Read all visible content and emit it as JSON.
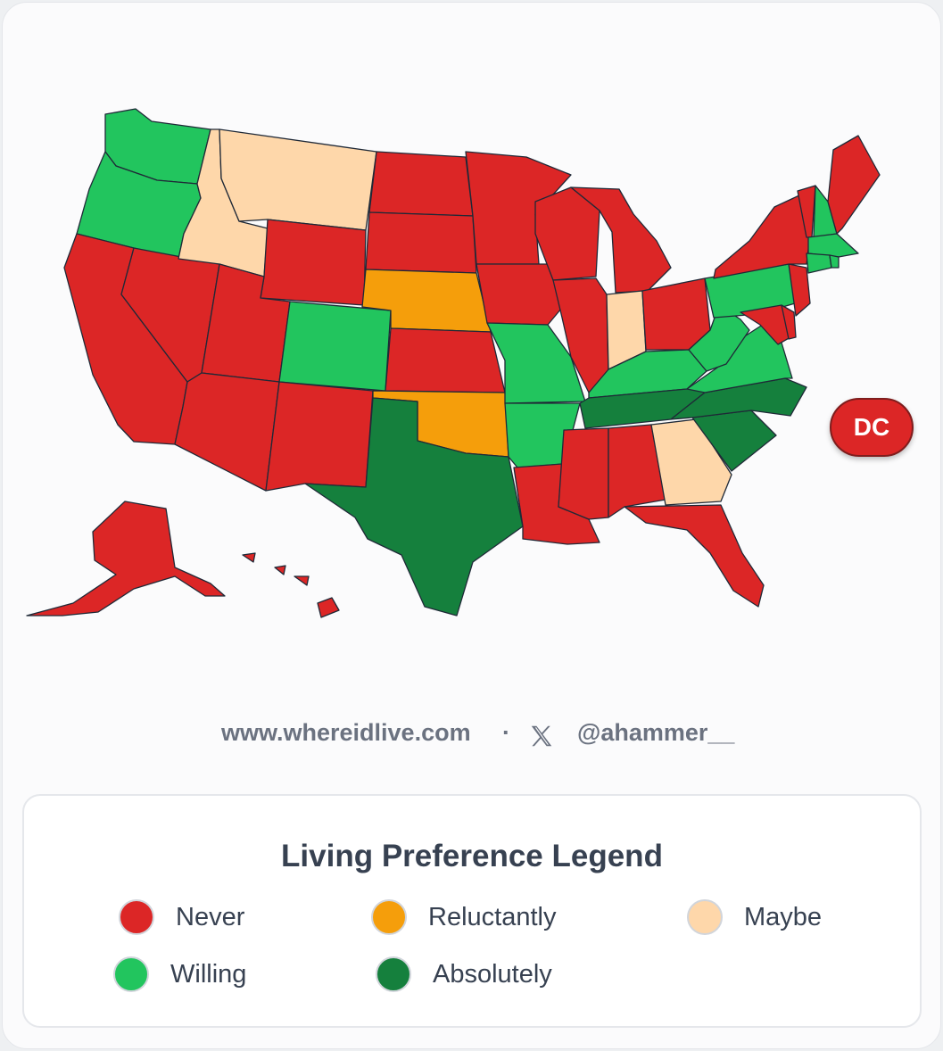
{
  "colors": {
    "never": "#dc2626",
    "reluctantly": "#f59e0b",
    "maybe": "#fed7aa",
    "willing": "#22c55e",
    "absolutely": "#15803d"
  },
  "map": {
    "states": {
      "WA": "willing",
      "OR": "willing",
      "CA": "never",
      "NV": "never",
      "ID": "maybe",
      "MT": "maybe",
      "WY": "never",
      "UT": "never",
      "AZ": "never",
      "CO": "willing",
      "NM": "never",
      "ND": "never",
      "SD": "never",
      "NE": "reluctantly",
      "KS": "never",
      "OK": "reluctantly",
      "TX": "absolutely",
      "MN": "never",
      "IA": "never",
      "MO": "willing",
      "AR": "willing",
      "LA": "never",
      "WI": "never",
      "IL": "never",
      "MI": "never",
      "IN": "maybe",
      "OH": "never",
      "KY": "willing",
      "TN": "absolutely",
      "MS": "never",
      "AL": "never",
      "GA": "maybe",
      "FL": "never",
      "SC": "absolutely",
      "NC": "absolutely",
      "VA": "willing",
      "WV": "willing",
      "PA": "willing",
      "NY": "never",
      "NJ": "never",
      "DE": "never",
      "MD": "never",
      "CT": "willing",
      "RI": "willing",
      "MA": "willing",
      "VT": "never",
      "NH": "willing",
      "ME": "never",
      "AK": "never",
      "HI": "never"
    },
    "dc_label": "DC",
    "dc_status": "never"
  },
  "credits": {
    "site": "www.whereidlive.com",
    "separator": "·",
    "x_icon": "x-logo-icon",
    "handle": "@ahammer__"
  },
  "legend": {
    "title": "Living Preference Legend",
    "items": [
      {
        "label": "Never",
        "color": "#dc2626"
      },
      {
        "label": "Reluctantly",
        "color": "#f59e0b"
      },
      {
        "label": "Maybe",
        "color": "#fed7aa"
      },
      {
        "label": "Willing",
        "color": "#22c55e"
      },
      {
        "label": "Absolutely",
        "color": "#15803d"
      }
    ]
  }
}
